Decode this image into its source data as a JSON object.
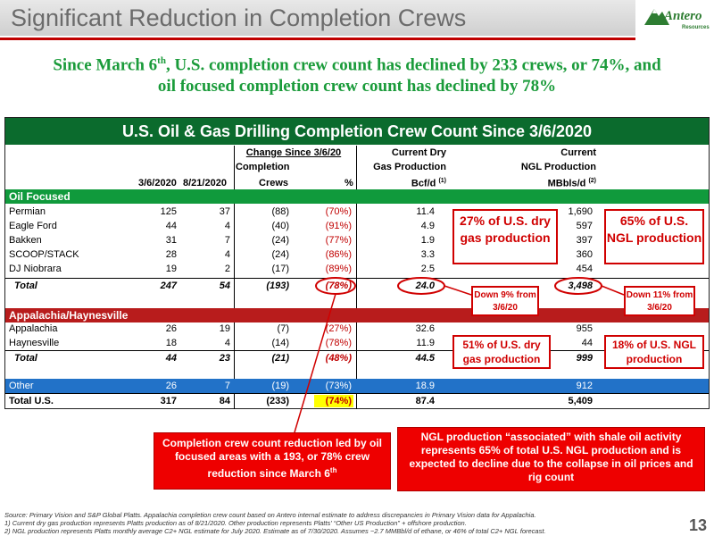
{
  "header": {
    "title": "Significant Reduction in Completion Crews",
    "logo_text": "Antero",
    "logo_sub": "Resources"
  },
  "headline": {
    "line1_a": "Since March 6",
    "line1_sup": "th",
    "line1_b": ",  U.S. completion crew count has declined by 233 crews, or 74%, and",
    "line2": "oil focused completion crew count has declined by 78%"
  },
  "table": {
    "title": "U.S. Oil & Gas Drilling Completion Crew Count Since 3/6/2020",
    "headers": {
      "change": "Change Since 3/6/20",
      "completion": "Completion",
      "crews": "Crews",
      "pct": "%",
      "date1": "3/6/2020",
      "date2": "8/21/2020",
      "gas1": "Current Dry",
      "gas2": "Gas Production",
      "gas3": "Bcf/d",
      "gas_sup": "(1)",
      "ngl1": "Current",
      "ngl2": "NGL Production",
      "ngl3": "MBbls/d",
      "ngl_sup": "(2)"
    },
    "sections": {
      "oil": "Oil Focused",
      "app": "Appalachia/Haynesville"
    },
    "oil_rows": [
      {
        "name": "Permian",
        "d1": "125",
        "d2": "37",
        "crews": "(88)",
        "pct": "(70%)",
        "gas": "11.4",
        "ngl": "1,690"
      },
      {
        "name": "Eagle Ford",
        "d1": "44",
        "d2": "4",
        "crews": "(40)",
        "pct": "(91%)",
        "gas": "4.9",
        "ngl": "597"
      },
      {
        "name": "Bakken",
        "d1": "31",
        "d2": "7",
        "crews": "(24)",
        "pct": "(77%)",
        "gas": "1.9",
        "ngl": "397"
      },
      {
        "name": "SCOOP/STACK",
        "d1": "28",
        "d2": "4",
        "crews": "(24)",
        "pct": "(86%)",
        "gas": "3.3",
        "ngl": "360"
      },
      {
        "name": "DJ Niobrara",
        "d1": "19",
        "d2": "2",
        "crews": "(17)",
        "pct": "(89%)",
        "gas": "2.5",
        "ngl": "454"
      }
    ],
    "oil_total": {
      "name": "Total",
      "d1": "247",
      "d2": "54",
      "crews": "(193)",
      "pct": "(78%)",
      "gas": "24.0",
      "ngl": "3,498"
    },
    "app_rows": [
      {
        "name": "Appalachia",
        "d1": "26",
        "d2": "19",
        "crews": "(7)",
        "pct": "(27%)",
        "gas": "32.6",
        "ngl": "955"
      },
      {
        "name": "Haynesville",
        "d1": "18",
        "d2": "4",
        "crews": "(14)",
        "pct": "(78%)",
        "gas": "11.9",
        "ngl": "44"
      }
    ],
    "app_total": {
      "name": "Total",
      "d1": "44",
      "d2": "23",
      "crews": "(21)",
      "pct": "(48%)",
      "gas": "44.5",
      "ngl": "999"
    },
    "other": {
      "name": "Other",
      "d1": "26",
      "d2": "7",
      "crews": "(19)",
      "pct": "(73%)",
      "gas": "18.9",
      "ngl": "912"
    },
    "us_total": {
      "name": "Total U.S.",
      "d1": "317",
      "d2": "84",
      "crews": "(233)",
      "pct": "(74%)",
      "gas": "87.4",
      "ngl": "5,409"
    }
  },
  "callouts": {
    "gas_pct": "27% of U.S. dry gas production",
    "ngl_pct": "65% of U.S. NGL production",
    "gas_down": "Down 9% from 3/6/20",
    "ngl_down": "Down 11% from 3/6/20",
    "app_gas": "51% of U.S. dry gas production",
    "app_ngl": "18% of U.S. NGL production",
    "box_left": "Completion crew count reduction led by oil focused areas with a 193, or 78% crew reduction since March 6",
    "box_left_sup": "th",
    "box_right": "NGL production “associated” with shale oil activity represents 65% of total U.S. NGL production and is expected to decline due to the collapse in oil prices and rig count"
  },
  "footnotes": {
    "source": "Source: Primary Vision and S&P Global Platts.  Appalachia completion crew count based on Antero internal estimate to address discrepancies in Primary Vision data for Appalachia.",
    "n1": "1)      Current dry gas production represents Platts production as of 8/21/2020. Other production represents Platts' “Other US Production” + offshore production.",
    "n2": "2)      NGL production represents Platts monthly average C2+ NGL estimate for July 2020.  Estimate as of 7/30/2020.  Assumes ~2.7 MMBbl/d of ethane, or 46% of total C2+ NGL forecast."
  },
  "page_number": "13",
  "colors": {
    "accent_red": "#c00000",
    "green_header": "#0b6b2d",
    "section_green": "#109a3c",
    "section_red": "#b81c1c",
    "section_blue": "#2272c8",
    "highlight_yellow": "#ffff00"
  }
}
